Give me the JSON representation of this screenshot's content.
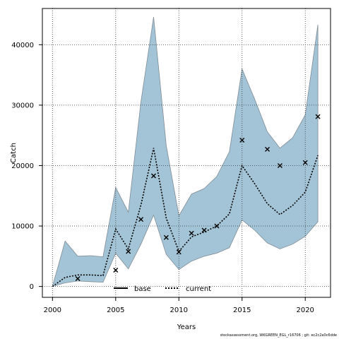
{
  "chart_data": {
    "type": "line",
    "xlabel": "Years",
    "ylabel": "Catch",
    "xlim": [
      1999.2,
      2022.0
    ],
    "ylim": [
      -1800,
      46000
    ],
    "xticks": [
      2000,
      2005,
      2010,
      2015,
      2020
    ],
    "yticks": [
      0,
      10000,
      20000,
      30000,
      40000
    ],
    "grid": true,
    "grid_style": "dotted",
    "legend_position": "bottom-center",
    "band": {
      "color": "#a3c4d6",
      "stroke": "#7f8c95",
      "x": [
        2000,
        2001,
        2002,
        2003,
        2004,
        2005,
        2006,
        2007,
        2008,
        2009,
        2010,
        2011,
        2012,
        2013,
        2014,
        2015,
        2016,
        2017,
        2018,
        2019,
        2020,
        2021
      ],
      "lower": [
        0,
        600,
        900,
        800,
        700,
        5500,
        2900,
        7000,
        11800,
        5300,
        2800,
        4200,
        5000,
        5500,
        6400,
        11000,
        9300,
        7200,
        6200,
        7000,
        8300,
        10700
      ],
      "upper": [
        0,
        7500,
        5000,
        5100,
        4900,
        16400,
        12300,
        30600,
        44600,
        23300,
        11700,
        15300,
        16200,
        18200,
        22300,
        36000,
        31000,
        25600,
        22900,
        24600,
        28400,
        43300
      ]
    },
    "series": [
      {
        "name": "base",
        "style": "solid",
        "color": "#000000",
        "x": [],
        "values": []
      },
      {
        "name": "current",
        "style": "dotted",
        "color": "#000000",
        "x": [
          2000,
          2001,
          2002,
          2003,
          2004,
          2005,
          2006,
          2007,
          2008,
          2009,
          2010,
          2011,
          2012,
          2013,
          2014,
          2015,
          2016,
          2017,
          2018,
          2019,
          2020,
          2021
        ],
        "values": [
          0,
          1500,
          1900,
          1900,
          1800,
          9500,
          6200,
          13500,
          22900,
          11300,
          5800,
          8200,
          9000,
          10000,
          12000,
          20000,
          17000,
          13700,
          11900,
          13400,
          15600,
          21700
        ]
      }
    ],
    "observations": {
      "marker": "x",
      "x": [
        2002,
        2005,
        2006,
        2007,
        2008,
        2009,
        2010,
        2011,
        2012,
        2013,
        2015,
        2017,
        2018,
        2020,
        2021
      ],
      "values": [
        1300,
        2700,
        5800,
        11100,
        18300,
        8100,
        5700,
        8800,
        9300,
        10000,
        24200,
        22700,
        20000,
        20500,
        28100
      ]
    }
  },
  "footer": {
    "text": "stockassessment.org, WKGREEN_EGL_r16706 ; git: ec2c2a0c6dde"
  }
}
